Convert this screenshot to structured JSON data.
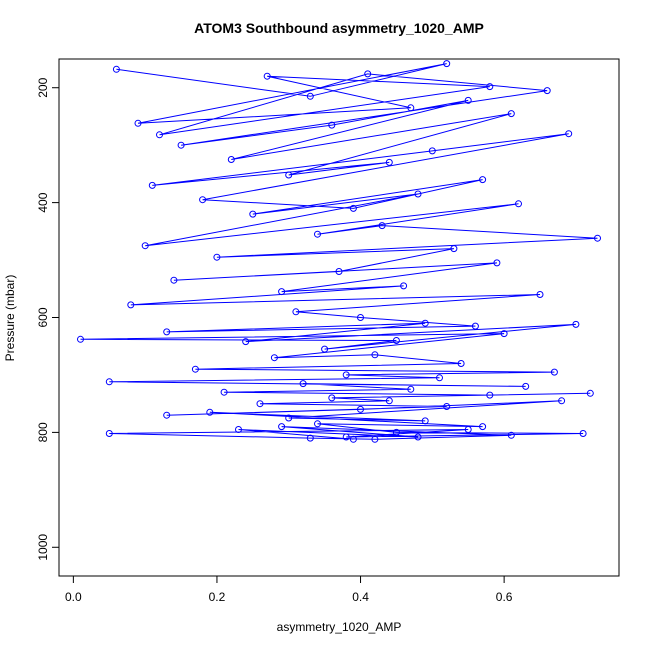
{
  "chart_data": {
    "type": "line",
    "title": "ATOM3 Southbound asymmetry_1020_AMP",
    "xlabel": "asymmetry_1020_AMP",
    "ylabel": "Pressure (mbar)",
    "xlim": [
      -0.02,
      0.76
    ],
    "ylim": [
      1050,
      150
    ],
    "y_reversed": true,
    "grid": false,
    "x_ticks": [
      0.0,
      0.2,
      0.4,
      0.6
    ],
    "x_tick_labels": [
      "0.0",
      "0.2",
      "0.4",
      "0.6"
    ],
    "y_ticks": [
      200,
      400,
      600,
      800,
      1000
    ],
    "y_tick_labels": [
      "200",
      "400",
      "600",
      "800",
      "1000"
    ],
    "series": [
      {
        "color": "#0000ff",
        "marker": "open-circle",
        "x": [
          0.06,
          0.33,
          0.52,
          0.09,
          0.47,
          0.27,
          0.58,
          0.12,
          0.41,
          0.66,
          0.15,
          0.36,
          0.55,
          0.22,
          0.61,
          0.3,
          0.44,
          0.11,
          0.5,
          0.69,
          0.18,
          0.39,
          0.57,
          0.25,
          0.48,
          0.1,
          0.62,
          0.34,
          0.43,
          0.73,
          0.2,
          0.53,
          0.37,
          0.14,
          0.59,
          0.29,
          0.46,
          0.08,
          0.65,
          0.31,
          0.4,
          0.56,
          0.13,
          0.49,
          0.24,
          0.7,
          0.35,
          0.45,
          0.01,
          0.6,
          0.28,
          0.42,
          0.54,
          0.17,
          0.67,
          0.38,
          0.51,
          0.05,
          0.63,
          0.32,
          0.47,
          0.21,
          0.58,
          0.72,
          0.36,
          0.44,
          0.26,
          0.52,
          0.13,
          0.4,
          0.68,
          0.3,
          0.49,
          0.19,
          0.57,
          0.34,
          0.45,
          0.71,
          0.38,
          0.55,
          0.05,
          0.33,
          0.42,
          0.61,
          0.29,
          0.48,
          0.23,
          0.39
        ],
        "y": [
          168,
          215,
          158,
          262,
          235,
          180,
          198,
          282,
          176,
          205,
          300,
          265,
          222,
          325,
          245,
          352,
          330,
          370,
          310,
          280,
          395,
          410,
          360,
          420,
          385,
          475,
          402,
          455,
          440,
          462,
          495,
          480,
          520,
          535,
          505,
          555,
          545,
          578,
          560,
          590,
          600,
          615,
          625,
          610,
          642,
          612,
          655,
          640,
          638,
          628,
          670,
          665,
          680,
          690,
          695,
          700,
          705,
          712,
          720,
          715,
          725,
          730,
          735,
          732,
          740,
          745,
          750,
          755,
          770,
          760,
          745,
          775,
          780,
          765,
          790,
          785,
          800,
          802,
          808,
          795,
          802,
          810,
          812,
          805,
          790,
          808,
          795,
          812
        ]
      }
    ]
  }
}
